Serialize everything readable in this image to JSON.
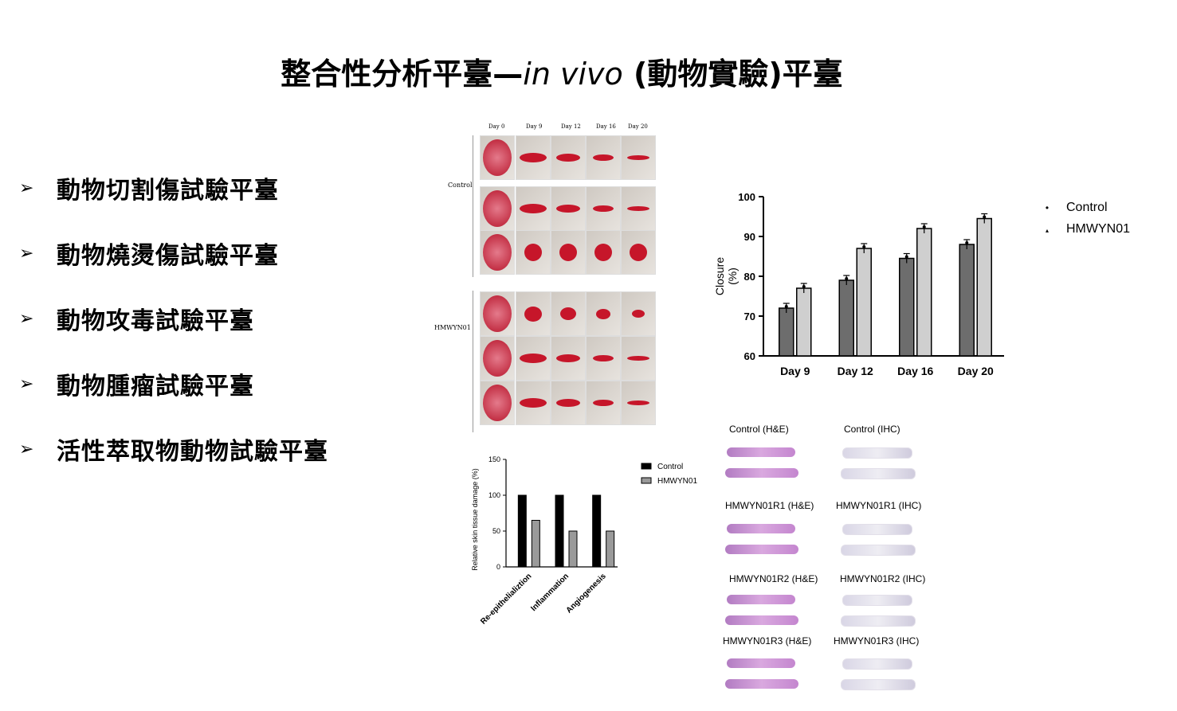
{
  "title": {
    "main": "整合性分析平臺—",
    "italic": "in vivo",
    "paren": " (動物實驗)平臺"
  },
  "bullets": [
    {
      "marker": "➢",
      "label": "動物切割傷試驗平臺"
    },
    {
      "marker": "➢",
      "label": "動物燒燙傷試驗平臺"
    },
    {
      "marker": "➢",
      "label": "動物攻毒試驗平臺"
    },
    {
      "marker": "➢",
      "label": "動物腫瘤試驗平臺"
    },
    {
      "marker": "➢",
      "label": "活性萃取物動物試驗平臺"
    }
  ],
  "photos": {
    "days": [
      "Day 0",
      "Day 9",
      "Day 12",
      "Day 16",
      "Day 20"
    ],
    "groups": [
      "Control",
      "HMWYN01"
    ]
  },
  "colors": {
    "dark_bar": "#6d6d6d",
    "light_bar": "#cfcfcf",
    "he": "#c486cf",
    "ihc": "#dedbe8"
  },
  "chart_data": [
    {
      "type": "bar",
      "categories": [
        "Day 9",
        "Day 12",
        "Day 16",
        "Day 20"
      ],
      "series": [
        {
          "name": "Control",
          "values": [
            72,
            79,
            84.5,
            88
          ]
        },
        {
          "name": "HMWYN01",
          "values": [
            77,
            87,
            92,
            94.5
          ]
        }
      ],
      "xlabel": "",
      "ylabel": "Closure (%)",
      "ylim": [
        60,
        100
      ],
      "yticks": [
        "60",
        "70",
        "80",
        "90",
        "100"
      ],
      "legend": "right",
      "legend_markers": [
        "•",
        "▴"
      ]
    },
    {
      "type": "bar",
      "categories": [
        "Re-epithelializtion",
        "Inflammation",
        "Angiogenesis"
      ],
      "series": [
        {
          "name": "Control",
          "values": [
            100,
            100,
            100
          ]
        },
        {
          "name": "HMWYN01",
          "values": [
            65,
            50,
            50
          ]
        }
      ],
      "xlabel": "",
      "ylabel": "Relative skin tissue damage  (%)",
      "ylim": [
        0,
        150
      ],
      "yticks": [
        "0",
        "50",
        "100",
        "150"
      ],
      "legend": "right"
    }
  ],
  "histology": {
    "labels": [
      [
        "Control  (H&E)",
        "Control (IHC)"
      ],
      [
        "HMWYN01R1  (H&E)",
        "HMWYN01R1 (IHC)"
      ],
      [
        "HMWYN01R2  (H&E)",
        "HMWYN01R2 (IHC)"
      ],
      [
        "HMWYN01R3  (H&E)",
        "HMWYN01R3 (IHC)"
      ]
    ]
  }
}
